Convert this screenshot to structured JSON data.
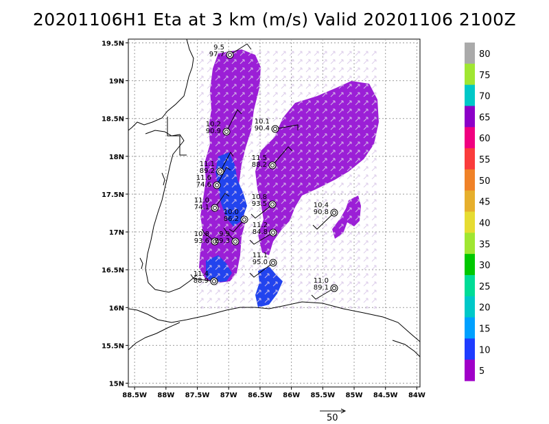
{
  "title": "20201106H1 Eta at 3 km (m/s) Valid 20201106 2100Z",
  "axes": {
    "lon_ticks": [
      "88.5W",
      "88W",
      "87.5W",
      "87W",
      "86.5W",
      "86W",
      "85.5W",
      "85W",
      "84.5W",
      "84W"
    ],
    "lat_ticks": [
      "19.5N",
      "19N",
      "18.5N",
      "18N",
      "17.5N",
      "17N",
      "16.5N",
      "16N",
      "15.5N",
      "15N"
    ],
    "lon_range": [
      -88.6,
      -83.95
    ],
    "lat_range": [
      14.95,
      19.55
    ]
  },
  "colorbar": {
    "labels": [
      "5",
      "10",
      "15",
      "20",
      "25",
      "30",
      "35",
      "40",
      "45",
      "50",
      "55",
      "60",
      "65",
      "70",
      "75",
      "80"
    ],
    "colors": [
      "#a000c8",
      "#1e3cff",
      "#00a0ff",
      "#00c8c8",
      "#00dc96",
      "#00c800",
      "#a0e632",
      "#e6dc32",
      "#e6af2d",
      "#f08228",
      "#fa3c3c",
      "#f00080",
      "#8c00c8",
      "#00c8c8",
      "#a0e632",
      "#aaaaaa"
    ]
  },
  "colors": {
    "wind_field": "#9b1fd6",
    "wind_field_strong": "#2244ee",
    "coast": "#000000",
    "grid": "#999999"
  },
  "reference_vector": {
    "label": "50"
  },
  "stations": [
    {
      "lines": [
        "9.5",
        "97.7"
      ]
    },
    {
      "lines": [
        "10.2",
        "90.9"
      ]
    },
    {
      "lines": [
        "10.1",
        "90.4"
      ]
    },
    {
      "lines": [
        "11.5",
        "88.2"
      ]
    },
    {
      "lines": [
        "11.1",
        "89.2"
      ]
    },
    {
      "lines": [
        "11.6",
        "74.6"
      ]
    },
    {
      "lines": [
        "11.0",
        "74.1"
      ]
    },
    {
      "lines": [
        "10.8",
        "93.5"
      ]
    },
    {
      "lines": [
        "10.0",
        "86.2"
      ]
    },
    {
      "lines": [
        "11.2",
        "84.8"
      ]
    },
    {
      "lines": [
        "10.4",
        "90.8"
      ]
    },
    {
      "lines": [
        "10.8",
        "93.6"
      ]
    },
    {
      "lines": [
        "9.9",
        "89.3"
      ]
    },
    {
      "lines": [
        "11.1",
        "95.0"
      ]
    },
    {
      "lines": [
        "11.4",
        "88.9"
      ]
    },
    {
      "lines": [
        "11.0",
        "89.1"
      ]
    }
  ]
}
